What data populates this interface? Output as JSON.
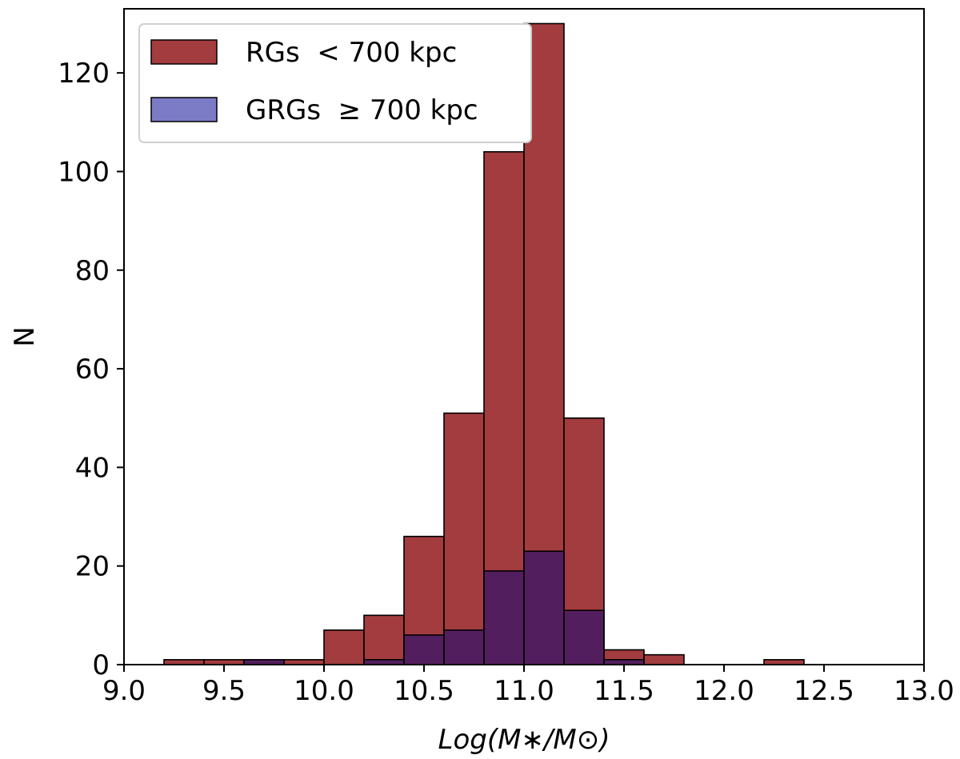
{
  "chart_data": {
    "type": "bar",
    "xlabel": "Log(M∗/M⊙)",
    "ylabel": "N",
    "xlim": [
      9.0,
      13.0
    ],
    "ylim": [
      0,
      133
    ],
    "bin_edges": [
      9.0,
      9.2,
      9.4,
      9.6,
      9.8,
      10.0,
      10.2,
      10.4,
      10.6,
      10.8,
      11.0,
      11.2,
      11.4,
      11.6,
      11.8,
      12.0,
      12.2,
      12.4,
      12.6,
      12.8,
      13.0
    ],
    "series": [
      {
        "name": "RGs  < 700 kpc",
        "color": "#a33c3f",
        "values": [
          0,
          1,
          1,
          1,
          1,
          7,
          10,
          26,
          51,
          104,
          130,
          50,
          3,
          2,
          0,
          0,
          1,
          0,
          0,
          0
        ]
      },
      {
        "name": "GRGs  ≥ 700 kpc",
        "color": "#7b7bc6",
        "values": [
          0,
          0,
          0,
          1,
          0,
          0,
          1,
          6,
          7,
          19,
          23,
          11,
          1,
          0,
          0,
          0,
          0,
          0,
          0,
          0
        ]
      }
    ],
    "overlap_color": "#531e5e",
    "xticks": [
      "9.0",
      "9.5",
      "10.0",
      "10.5",
      "11.0",
      "11.5",
      "12.0",
      "12.5",
      "13.0"
    ],
    "yticks": [
      "0",
      "20",
      "40",
      "60",
      "80",
      "100",
      "120"
    ],
    "legend_position": "upper-left",
    "grid": false
  }
}
